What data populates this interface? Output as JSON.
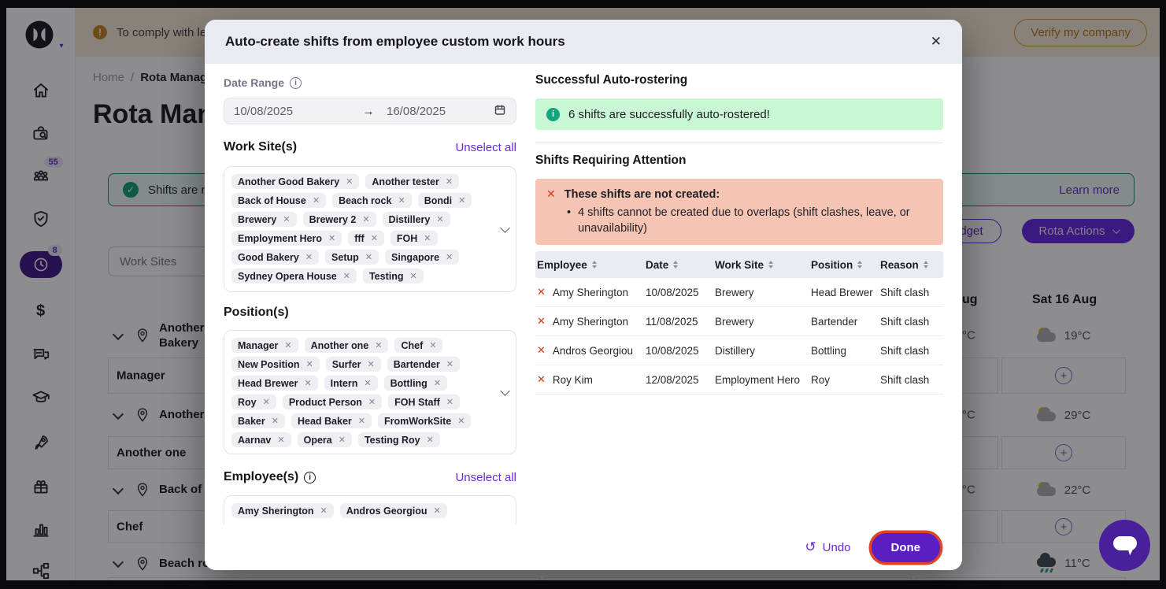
{
  "colors": {
    "accent_purple": "#6123E2",
    "done_button_bg": "#5A1EC2",
    "done_focus_ring": "#DC4527",
    "success_bg": "#C9F6D4",
    "success_icon": "#12A47F",
    "error_bg": "#F6C4B2",
    "error_icon": "#D23A1B",
    "modal_header_bg": "#E9EBF3",
    "table_header_bg": "#E9ECF3",
    "warning_banner_bg": "#F8ECD7",
    "chat_bubble": "#48209B"
  },
  "icons": {
    "close": "✕",
    "remove": "✕",
    "error_x": "✕",
    "arrow_right": "→",
    "undo": "↺",
    "plus": "+",
    "check": "✓",
    "warning": "!",
    "info": "i",
    "bullet": "•",
    "dollar": "$",
    "caret_down": "▾"
  },
  "sidebar": {
    "people_badge": "55",
    "time_badge": "8"
  },
  "background": {
    "top_banner": {
      "text": "To comply with leg",
      "verify_button": "Verify my company"
    },
    "breadcrumb": {
      "home": "Home",
      "separator": "/",
      "current": "Rota Manag"
    },
    "page_title": "Rota Man",
    "success_banner": {
      "text": "Shifts are no",
      "link": "Learn more"
    },
    "budget_button": "Budget",
    "rota_actions_button": "Rota Actions",
    "work_sites_placeholder": "Work Sites",
    "day_headers": [
      "ug",
      "Sat 16 Aug"
    ],
    "rows": [
      {
        "kind": "site",
        "name": "Another G Bakery",
        "temp_fragment": "°C",
        "temp": "19°C",
        "weather": "partly-cloudy"
      },
      {
        "kind": "position",
        "name": "Manager"
      },
      {
        "kind": "site",
        "name": "Another t",
        "temp_fragment": "°C",
        "temp": "29°C",
        "weather": "partly-cloudy"
      },
      {
        "kind": "position",
        "name": "Another one"
      },
      {
        "kind": "site",
        "name": "Back of H",
        "temp_fragment": "°C",
        "temp": "22°C",
        "weather": "partly-cloudy"
      },
      {
        "kind": "position",
        "name": "Chef"
      },
      {
        "kind": "site",
        "name": "Beach roc",
        "temp_fragment": "",
        "temp": "11°C",
        "weather": "rain"
      }
    ]
  },
  "modal": {
    "title": "Auto-create shifts from employee custom work hours",
    "date_range": {
      "label": "Date Range",
      "start": "10/08/2025",
      "end": "16/08/2025"
    },
    "work_sites": {
      "label": "Work Site(s)",
      "unselect_all": "Unselect all",
      "tags": [
        "Another Good Bakery",
        "Another tester",
        "Back of House",
        "Beach rock",
        "Bondi",
        "Brewery",
        "Brewery 2",
        "Distillery",
        "Employment Hero",
        "fff",
        "FOH",
        "Good Bakery",
        "Setup",
        "Singapore",
        "Sydney Opera House",
        "Testing"
      ]
    },
    "positions": {
      "label": "Position(s)",
      "tags": [
        "Manager",
        "Another one",
        "Chef",
        "New Position",
        "Surfer",
        "Bartender",
        "Head Brewer",
        "Intern",
        "Bottling",
        "Roy",
        "Product Person",
        "FOH Staff",
        "Baker",
        "Head Baker",
        "FromWorkSite",
        "Aarnav",
        "Opera",
        "Testing Roy"
      ]
    },
    "employees": {
      "label": "Employee(s)",
      "unselect_all": "Unselect all",
      "tags": [
        "Amy Sherington",
        "Andros Georgiou"
      ]
    },
    "success_section": {
      "heading": "Successful Auto-rostering",
      "message": "6 shifts are successfully auto-rostered!"
    },
    "attention_section": {
      "heading": "Shifts Requiring Attention",
      "alert_title": "These shifts are not created:",
      "alert_detail": "4 shifts cannot be created due to overlaps (shift clashes, leave, or unavailability)"
    },
    "table": {
      "headers": [
        "Employee",
        "Date",
        "Work Site",
        "Position",
        "Reason"
      ],
      "rows": [
        {
          "employee": "Amy Sherington",
          "date": "10/08/2025",
          "work_site": "Brewery",
          "position": "Head Brewer",
          "reason": "Shift clash"
        },
        {
          "employee": "Amy Sherington",
          "date": "11/08/2025",
          "work_site": "Brewery",
          "position": "Bartender",
          "reason": "Shift clash"
        },
        {
          "employee": "Andros Georgiou",
          "date": "10/08/2025",
          "work_site": "Distillery",
          "position": "Bottling",
          "reason": "Shift clash"
        },
        {
          "employee": "Roy Kim",
          "date": "12/08/2025",
          "work_site": "Employment Hero",
          "position": "Roy",
          "reason": "Shift clash"
        }
      ]
    },
    "footer": {
      "undo": "Undo",
      "done": "Done"
    }
  }
}
